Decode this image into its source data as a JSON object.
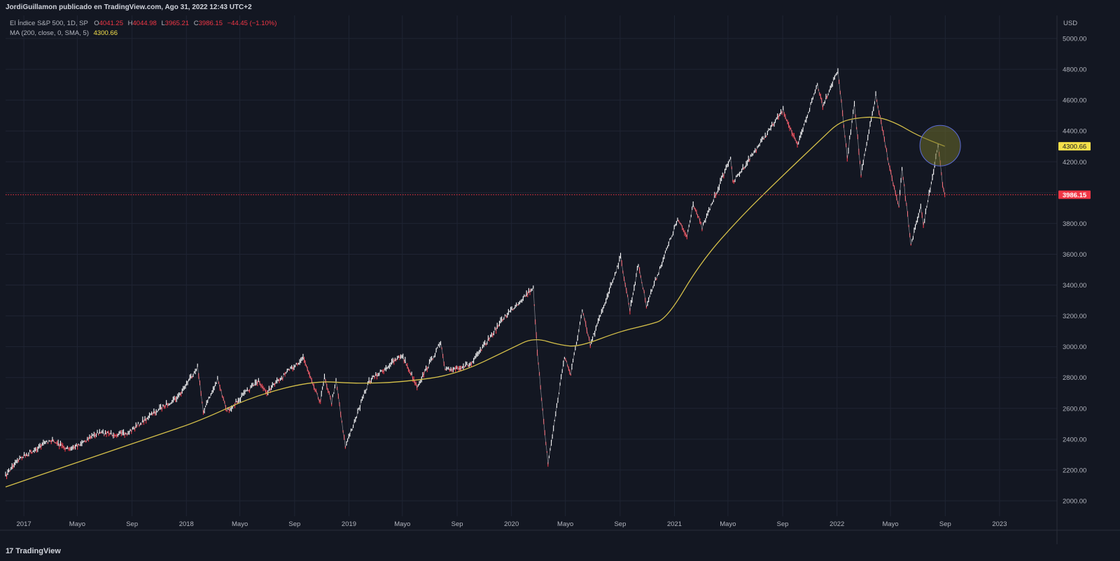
{
  "header": {
    "publisher": "JordiGuillamon publicado en TradingView.com, Ago 31, 2022 12:43 UTC+2"
  },
  "legend": {
    "symbol": "El Índice S&P 500, 1D, SP",
    "o_label": "O",
    "o_value": "4041.25",
    "h_label": "H",
    "h_value": "4044.98",
    "l_label": "L",
    "l_value": "3965.21",
    "c_label": "C",
    "c_value": "3986.15",
    "change": "−44.45 (−1.10%)",
    "ma_label": "MA (200, close, 0, SMA, 5)",
    "ma_value": "4300.66"
  },
  "footer": {
    "brand": "TradingView",
    "logo_glyph": "17"
  },
  "colors": {
    "background": "#131722",
    "grid": "#1f2433",
    "up": "#ffffff",
    "down": "#f23645",
    "ma": "#d6c14a",
    "price_label": "#f23645",
    "ma_label": "#f5e04a",
    "highlight": "#6b6b2a"
  },
  "chart_data": {
    "type": "line",
    "currency": "USD",
    "y_axis": {
      "range": [
        1900,
        5150
      ],
      "ticks": [
        "2000.00",
        "2200.00",
        "2400.00",
        "2600.00",
        "2800.00",
        "3000.00",
        "3200.00",
        "3400.00",
        "3600.00",
        "3800.00",
        "4000.00",
        "4200.00",
        "4400.00",
        "4600.00",
        "4800.00",
        "5000.00"
      ],
      "tick_values": [
        2000,
        2200,
        2400,
        2600,
        2800,
        3000,
        3200,
        3400,
        3600,
        3800,
        4000,
        4200,
        4400,
        4600,
        4800,
        5000
      ]
    },
    "x_axis": {
      "range": [
        "2016-11-21",
        "2023-05-10"
      ],
      "ticks": [
        {
          "date": "2017-01-01",
          "label": "2017"
        },
        {
          "date": "2017-05-01",
          "label": "Mayo"
        },
        {
          "date": "2017-09-01",
          "label": "Sep"
        },
        {
          "date": "2018-01-01",
          "label": "2018"
        },
        {
          "date": "2018-05-01",
          "label": "Mayo"
        },
        {
          "date": "2018-09-01",
          "label": "Sep"
        },
        {
          "date": "2019-01-01",
          "label": "2019"
        },
        {
          "date": "2019-05-01",
          "label": "Mayo"
        },
        {
          "date": "2019-09-01",
          "label": "Sep"
        },
        {
          "date": "2020-01-01",
          "label": "2020"
        },
        {
          "date": "2020-05-01",
          "label": "Mayo"
        },
        {
          "date": "2020-09-01",
          "label": "Sep"
        },
        {
          "date": "2021-01-01",
          "label": "2021"
        },
        {
          "date": "2021-05-01",
          "label": "Mayo"
        },
        {
          "date": "2021-09-01",
          "label": "Sep"
        },
        {
          "date": "2022-01-01",
          "label": "2022"
        },
        {
          "date": "2022-05-01",
          "label": "Mayo"
        },
        {
          "date": "2022-09-01",
          "label": "Sep"
        },
        {
          "date": "2023-01-01",
          "label": "2023"
        }
      ]
    },
    "price_series": {
      "name": "El Índice S&P 500",
      "points": [
        [
          "2016-11-21",
          2160
        ],
        [
          "2016-12-15",
          2260
        ],
        [
          "2017-03-01",
          2395
        ],
        [
          "2017-04-14",
          2330
        ],
        [
          "2017-06-15",
          2440
        ],
        [
          "2017-08-18",
          2430
        ],
        [
          "2017-10-15",
          2560
        ],
        [
          "2017-12-15",
          2680
        ],
        [
          "2018-01-26",
          2872
        ],
        [
          "2018-02-08",
          2581
        ],
        [
          "2018-03-12",
          2786
        ],
        [
          "2018-04-02",
          2581
        ],
        [
          "2018-06-12",
          2782
        ],
        [
          "2018-06-28",
          2700
        ],
        [
          "2018-09-20",
          2930
        ],
        [
          "2018-10-29",
          2641
        ],
        [
          "2018-11-07",
          2813
        ],
        [
          "2018-11-23",
          2632
        ],
        [
          "2018-12-03",
          2790
        ],
        [
          "2018-12-24",
          2351
        ],
        [
          "2019-02-15",
          2775
        ],
        [
          "2019-04-30",
          2945
        ],
        [
          "2019-06-03",
          2744
        ],
        [
          "2019-07-26",
          3025
        ],
        [
          "2019-08-05",
          2844
        ],
        [
          "2019-10-03",
          2888
        ],
        [
          "2019-12-15",
          3190
        ],
        [
          "2020-02-19",
          3386
        ],
        [
          "2020-02-28",
          2954
        ],
        [
          "2020-03-23",
          2237
        ],
        [
          "2020-04-29",
          2939
        ],
        [
          "2020-05-13",
          2820
        ],
        [
          "2020-06-08",
          3232
        ],
        [
          "2020-06-26",
          3009
        ],
        [
          "2020-09-02",
          3580
        ],
        [
          "2020-09-23",
          3237
        ],
        [
          "2020-10-12",
          3534
        ],
        [
          "2020-10-30",
          3270
        ],
        [
          "2021-01-08",
          3824
        ],
        [
          "2021-01-29",
          3714
        ],
        [
          "2021-02-12",
          3934
        ],
        [
          "2021-03-04",
          3768
        ],
        [
          "2021-05-07",
          4232
        ],
        [
          "2021-05-12",
          4063
        ],
        [
          "2021-09-02",
          4536
        ],
        [
          "2021-10-04",
          4300
        ],
        [
          "2021-11-18",
          4704
        ],
        [
          "2021-11-30",
          4567
        ],
        [
          "2022-01-03",
          4796
        ],
        [
          "2022-01-24",
          4223
        ],
        [
          "2022-02-09",
          4587
        ],
        [
          "2022-02-24",
          4114
        ],
        [
          "2022-03-29",
          4631
        ],
        [
          "2022-05-02",
          4123
        ],
        [
          "2022-05-20",
          3900
        ],
        [
          "2022-05-27",
          4158
        ],
        [
          "2022-06-16",
          3667
        ],
        [
          "2022-07-08",
          3899
        ],
        [
          "2022-07-14",
          3790
        ],
        [
          "2022-08-16",
          4305
        ],
        [
          "2022-08-26",
          4058
        ],
        [
          "2022-08-31",
          3986
        ]
      ]
    },
    "ma_series": {
      "name": "MA (200, close, 0, SMA, 5)",
      "points": [
        [
          "2016-11-21",
          2090
        ],
        [
          "2017-05-01",
          2250
        ],
        [
          "2017-11-01",
          2430
        ],
        [
          "2018-02-01",
          2520
        ],
        [
          "2018-06-01",
          2680
        ],
        [
          "2018-10-15",
          2780
        ],
        [
          "2019-01-15",
          2760
        ],
        [
          "2019-05-01",
          2770
        ],
        [
          "2019-09-01",
          2820
        ],
        [
          "2020-01-01",
          2990
        ],
        [
          "2020-02-20",
          3060
        ],
        [
          "2020-04-20",
          3010
        ],
        [
          "2020-06-01",
          3000
        ],
        [
          "2020-09-01",
          3100
        ],
        [
          "2020-11-01",
          3140
        ],
        [
          "2020-12-15",
          3180
        ],
        [
          "2021-03-01",
          3550
        ],
        [
          "2021-06-01",
          3850
        ],
        [
          "2021-09-01",
          4110
        ],
        [
          "2021-12-01",
          4360
        ],
        [
          "2022-01-01",
          4445
        ],
        [
          "2022-02-01",
          4480
        ],
        [
          "2022-03-31",
          4495
        ],
        [
          "2022-05-15",
          4450
        ],
        [
          "2022-07-01",
          4370
        ],
        [
          "2022-08-31",
          4300.66
        ]
      ]
    },
    "last_price": 3986.15,
    "last_price_label": "3986.15",
    "ma_last_value": 4300.66,
    "ma_last_label": "4300.66",
    "annotation": {
      "type": "circle",
      "date": "2022-08-16",
      "value": 4300
    }
  }
}
